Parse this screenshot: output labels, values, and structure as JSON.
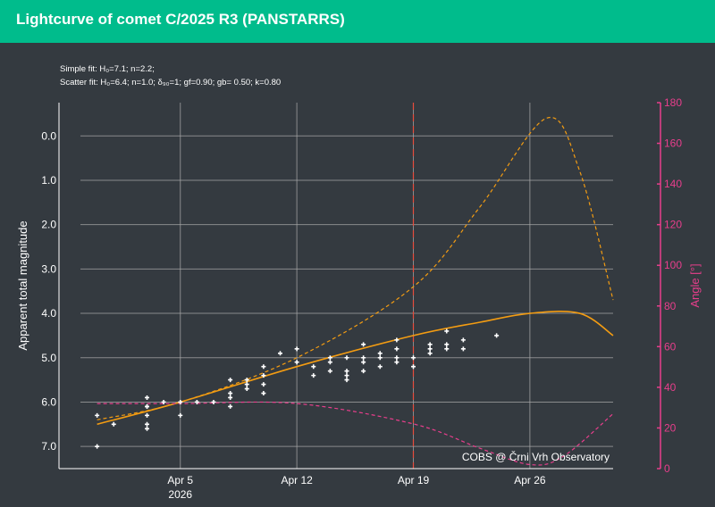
{
  "header": {
    "title": "Lightcurve of comet C/2025 R3 (PANSTARRS)"
  },
  "colors": {
    "header_bg": "#00bc8c",
    "background": "#343a40",
    "grid": "#a6a6a6",
    "axis_text": "#ffffff",
    "angle_axis": "#e83e8c",
    "fit": "#f39c12",
    "observations": "#ffffff",
    "perihelion_marker": "#e74c3c"
  },
  "chart_data": {
    "type": "scatter",
    "title": "",
    "fit_notes": [
      "Simple fit: H₀=7.1; n=2.2;",
      "Scatter fit: H₀=6.4; n=1.0; δ₉₀=1; gf=0.90; gb= 0.50; k=0.80"
    ],
    "watermark": "COBS @ Črni Vrh Observatory",
    "x_axis": {
      "type": "date",
      "range": [
        "2026-03-30",
        "2026-05-01"
      ],
      "ticks": [
        {
          "date": "2026-04-05",
          "label": "Apr 5",
          "sublabel": "2026"
        },
        {
          "date": "2026-04-12",
          "label": "Apr 12"
        },
        {
          "date": "2026-04-19",
          "label": "Apr 19"
        },
        {
          "date": "2026-04-26",
          "label": "Apr 26"
        }
      ]
    },
    "y_axis": {
      "label": "Apparent total magnitude",
      "reversed": true,
      "range": [
        7.5,
        -0.75
      ],
      "ticks": [
        0.0,
        1.0,
        2.0,
        3.0,
        4.0,
        5.0,
        6.0,
        7.0
      ],
      "tick_labels": [
        "0.0",
        "1.0",
        "2.0",
        "3.0",
        "4.0",
        "5.0",
        "6.0",
        "7.0"
      ]
    },
    "y2_axis": {
      "label": "Angle [°]",
      "range": [
        0,
        180
      ],
      "ticks": [
        0,
        20,
        40,
        60,
        80,
        100,
        120,
        140,
        160,
        180
      ],
      "tick_labels": [
        "0",
        "20",
        "40",
        "60",
        "80",
        "100",
        "120",
        "140",
        "160",
        "180"
      ]
    },
    "vertical_marker": {
      "date": "2026-04-19",
      "style": "dashed"
    },
    "observations": [
      {
        "x": "2026-03-31",
        "y": 6.3
      },
      {
        "x": "2026-03-31",
        "y": 7.0
      },
      {
        "x": "2026-04-01",
        "y": 6.5
      },
      {
        "x": "2026-04-03",
        "y": 5.9
      },
      {
        "x": "2026-04-03",
        "y": 6.1
      },
      {
        "x": "2026-04-03",
        "y": 6.3
      },
      {
        "x": "2026-04-03",
        "y": 6.5
      },
      {
        "x": "2026-04-03",
        "y": 6.6
      },
      {
        "x": "2026-04-03",
        "y": 6.1
      },
      {
        "x": "2026-04-04",
        "y": 6.0
      },
      {
        "x": "2026-04-05",
        "y": 6.0
      },
      {
        "x": "2026-04-05",
        "y": 6.3
      },
      {
        "x": "2026-04-06",
        "y": 6.0
      },
      {
        "x": "2026-04-07",
        "y": 6.0
      },
      {
        "x": "2026-04-08",
        "y": 5.5
      },
      {
        "x": "2026-04-08",
        "y": 5.8
      },
      {
        "x": "2026-04-08",
        "y": 6.1
      },
      {
        "x": "2026-04-08",
        "y": 5.9
      },
      {
        "x": "2026-04-09",
        "y": 5.6
      },
      {
        "x": "2026-04-09",
        "y": 5.7
      },
      {
        "x": "2026-04-09",
        "y": 5.5
      },
      {
        "x": "2026-04-10",
        "y": 5.2
      },
      {
        "x": "2026-04-10",
        "y": 5.4
      },
      {
        "x": "2026-04-10",
        "y": 5.6
      },
      {
        "x": "2026-04-10",
        "y": 5.8
      },
      {
        "x": "2026-04-11",
        "y": 4.9
      },
      {
        "x": "2026-04-12",
        "y": 5.1
      },
      {
        "x": "2026-04-12",
        "y": 4.8
      },
      {
        "x": "2026-04-13",
        "y": 5.2
      },
      {
        "x": "2026-04-13",
        "y": 5.4
      },
      {
        "x": "2026-04-14",
        "y": 5.0
      },
      {
        "x": "2026-04-14",
        "y": 5.3
      },
      {
        "x": "2026-04-14",
        "y": 5.1
      },
      {
        "x": "2026-04-15",
        "y": 5.0
      },
      {
        "x": "2026-04-15",
        "y": 5.3
      },
      {
        "x": "2026-04-15",
        "y": 5.4
      },
      {
        "x": "2026-04-15",
        "y": 5.5
      },
      {
        "x": "2026-04-16",
        "y": 4.7
      },
      {
        "x": "2026-04-16",
        "y": 5.0
      },
      {
        "x": "2026-04-16",
        "y": 5.3
      },
      {
        "x": "2026-04-16",
        "y": 5.1
      },
      {
        "x": "2026-04-17",
        "y": 5.0
      },
      {
        "x": "2026-04-17",
        "y": 5.2
      },
      {
        "x": "2026-04-17",
        "y": 4.9
      },
      {
        "x": "2026-04-18",
        "y": 4.8
      },
      {
        "x": "2026-04-18",
        "y": 5.0
      },
      {
        "x": "2026-04-18",
        "y": 5.1
      },
      {
        "x": "2026-04-18",
        "y": 4.6
      },
      {
        "x": "2026-04-19",
        "y": 5.2
      },
      {
        "x": "2026-04-19",
        "y": 5.0
      },
      {
        "x": "2026-04-20",
        "y": 4.7
      },
      {
        "x": "2026-04-20",
        "y": 4.9
      },
      {
        "x": "2026-04-20",
        "y": 4.8
      },
      {
        "x": "2026-04-21",
        "y": 4.8
      },
      {
        "x": "2026-04-21",
        "y": 4.7
      },
      {
        "x": "2026-04-21",
        "y": 4.4
      },
      {
        "x": "2026-04-22",
        "y": 4.6
      },
      {
        "x": "2026-04-22",
        "y": 4.8
      },
      {
        "x": "2026-04-24",
        "y": 4.5
      }
    ],
    "series": [
      {
        "style": "solid",
        "axis": "y",
        "x": [
          "2026-03-31",
          "2026-04-05",
          "2026-04-12",
          "2026-04-19",
          "2026-04-23",
          "2026-04-26",
          "2026-04-29",
          "2026-05-01"
        ],
        "y": [
          6.5,
          6.0,
          5.2,
          4.5,
          4.2,
          4.0,
          4.0,
          4.5
        ]
      },
      {
        "style": "dashed",
        "axis": "y",
        "x": [
          "2026-03-31",
          "2026-04-05",
          "2026-04-12",
          "2026-04-19",
          "2026-04-23",
          "2026-04-27",
          "2026-04-29",
          "2026-05-01"
        ],
        "y": [
          6.4,
          6.0,
          5.0,
          3.4,
          1.6,
          -0.4,
          0.8,
          3.7
        ]
      },
      {
        "style": "dashed",
        "axis": "y2",
        "x": [
          "2026-03-31",
          "2026-04-05",
          "2026-04-12",
          "2026-04-19",
          "2026-04-23",
          "2026-04-26",
          "2026-04-28",
          "2026-05-01"
        ],
        "y": [
          32,
          32,
          32,
          22,
          10,
          2,
          6,
          27
        ]
      }
    ]
  }
}
